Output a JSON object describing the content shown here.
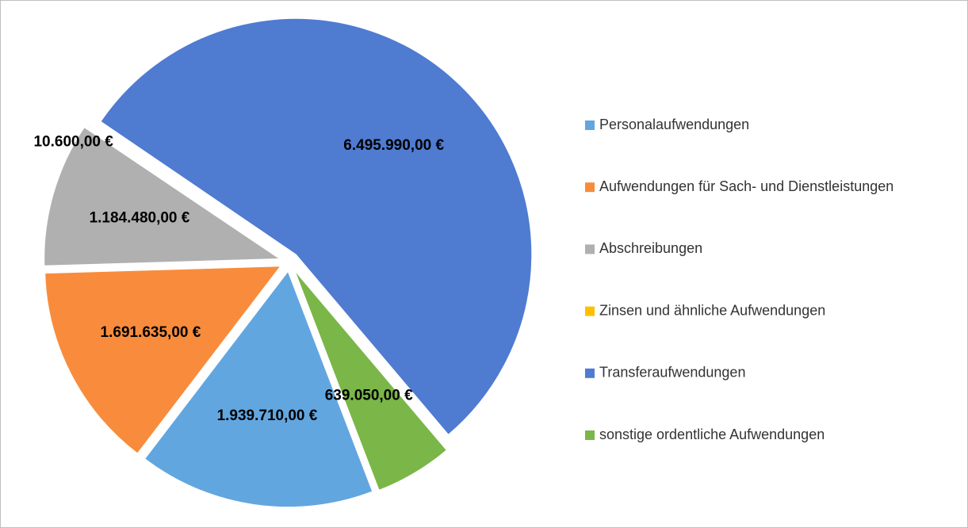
{
  "chart_data": {
    "type": "pie",
    "categories": [
      "Personalaufwendungen",
      "Aufwendungen für Sach- und Dienstleistungen",
      "Abschreibungen",
      "Zinsen und ähnliche Aufwendungen",
      "Transferaufwendungen",
      "sonstige ordentliche Aufwendungen"
    ],
    "values": [
      1939710,
      1691635,
      1184480,
      10600,
      6495990,
      639050
    ],
    "value_labels": [
      "1.939.710,00 €",
      "1.691.635,00 €",
      "1.184.480,00 €",
      "10.600,00 €",
      "6.495.990,00 €",
      "639.050,00 €"
    ],
    "colors": [
      "#62a6e0",
      "#f88c3c",
      "#b0b0b0",
      "#ffc000",
      "#4f7bd1",
      "#7ab648"
    ],
    "legend": "right"
  }
}
